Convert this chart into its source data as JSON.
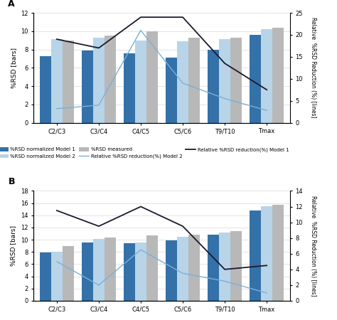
{
  "categories": [
    "C2/C3",
    "C3/C4",
    "C4/C5",
    "C5/C6",
    "T9/T10",
    "Tmax"
  ],
  "A": {
    "model1_bars": [
      7.3,
      7.9,
      7.6,
      7.1,
      8.0,
      9.6
    ],
    "model2_bars": [
      9.1,
      9.3,
      9.0,
      8.9,
      9.1,
      10.2
    ],
    "measured_bars": [
      9.0,
      9.5,
      10.0,
      9.3,
      9.3,
      10.4
    ],
    "line_model2": [
      3.2,
      4.0,
      21.0,
      9.0,
      5.5,
      2.8
    ],
    "line_model1": [
      19.0,
      17.0,
      24.0,
      24.0,
      13.5,
      7.5
    ],
    "left_ylim": [
      0,
      12
    ],
    "left_yticks": [
      0,
      2,
      4,
      6,
      8,
      10,
      12
    ],
    "right_ylim": [
      0,
      25
    ],
    "right_yticks": [
      0,
      5,
      10,
      15,
      20,
      25
    ]
  },
  "B": {
    "model1_bars": [
      7.9,
      9.5,
      9.4,
      9.9,
      10.8,
      14.8
    ],
    "model2_bars": [
      8.0,
      10.1,
      9.6,
      10.5,
      11.2,
      15.5
    ],
    "measured_bars": [
      9.0,
      10.4,
      10.7,
      10.8,
      11.4,
      15.7
    ],
    "line_model2": [
      5.0,
      2.0,
      6.5,
      3.5,
      2.5,
      1.0
    ],
    "line_model1": [
      11.5,
      9.5,
      12.0,
      9.5,
      4.0,
      4.5
    ],
    "left_ylim": [
      0,
      18
    ],
    "left_yticks": [
      0,
      2,
      4,
      6,
      8,
      10,
      12,
      14,
      16,
      18
    ],
    "right_ylim": [
      0,
      14
    ],
    "right_yticks": [
      0,
      2,
      4,
      6,
      8,
      10,
      12,
      14
    ]
  },
  "color_model1": "#3471a8",
  "color_model2": "#b8d4e8",
  "color_measured": "#b8b8b8",
  "color_line_model2": "#7ab0d8",
  "color_line_model1": "#1a1a2e",
  "bar_width": 0.27,
  "left_ylabel": "%RSD [bars]",
  "right_ylabel": "Relative  %RSD Reduction (%) [lines]",
  "legend_model1_bar": "%RSD normalized Model 1",
  "legend_model2_bar": "%RSD normalized Model 2",
  "legend_measured_bar": "%RSD measured",
  "legend_model2_line": "Relative %RSD reduction(%) Model 2",
  "legend_model1_line": "Relative %RSD reduction(%) Model 1"
}
